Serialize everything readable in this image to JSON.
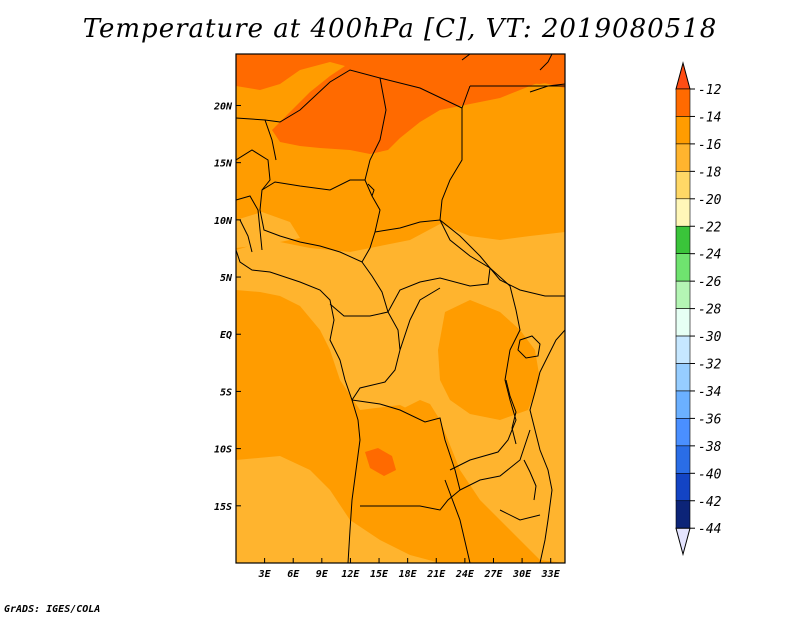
{
  "title": "Temperature at 400hPa [C], VT: 2019080518",
  "credit": "GrADS: IGES/COLA",
  "map": {
    "lon_range": [
      0,
      34.5
    ],
    "lat_range": [
      -20,
      24.5
    ],
    "lon_ticks": [
      {
        "lon": 3,
        "label": "3E"
      },
      {
        "lon": 6,
        "label": "6E"
      },
      {
        "lon": 9,
        "label": "9E"
      },
      {
        "lon": 12,
        "label": "12E"
      },
      {
        "lon": 15,
        "label": "15E"
      },
      {
        "lon": 18,
        "label": "18E"
      },
      {
        "lon": 21,
        "label": "21E"
      },
      {
        "lon": 24,
        "label": "24E"
      },
      {
        "lon": 27,
        "label": "27E"
      },
      {
        "lon": 30,
        "label": "30E"
      },
      {
        "lon": 33,
        "label": "33E"
      }
    ],
    "lat_ticks": [
      {
        "lat": 20,
        "label": "20N"
      },
      {
        "lat": 15,
        "label": "15N"
      },
      {
        "lat": 10,
        "label": "10N"
      },
      {
        "lat": 5,
        "label": "5N"
      },
      {
        "lat": 0,
        "label": "EQ"
      },
      {
        "lat": -5,
        "label": "5S"
      },
      {
        "lat": -10,
        "label": "10S"
      },
      {
        "lat": -15,
        "label": "15S"
      }
    ]
  },
  "colorbar": {
    "labels": [
      "-12",
      "-14",
      "-16",
      "-18",
      "-20",
      "-22",
      "-24",
      "-26",
      "-28",
      "-30",
      "-32",
      "-34",
      "-36",
      "-38",
      "-40",
      "-42",
      "-44"
    ],
    "colors": [
      "#ff4d14",
      "#ff6a00",
      "#ff9c00",
      "#ffb42e",
      "#ffd866",
      "#fff7b8",
      "#3ac43a",
      "#6fe36f",
      "#b4f5b4",
      "#e6fff4",
      "#c6e7ff",
      "#96cdff",
      "#6bb0ff",
      "#4a8fff",
      "#2a6de6",
      "#1344c4",
      "#0c2478",
      "#e4e4ff"
    ]
  }
}
